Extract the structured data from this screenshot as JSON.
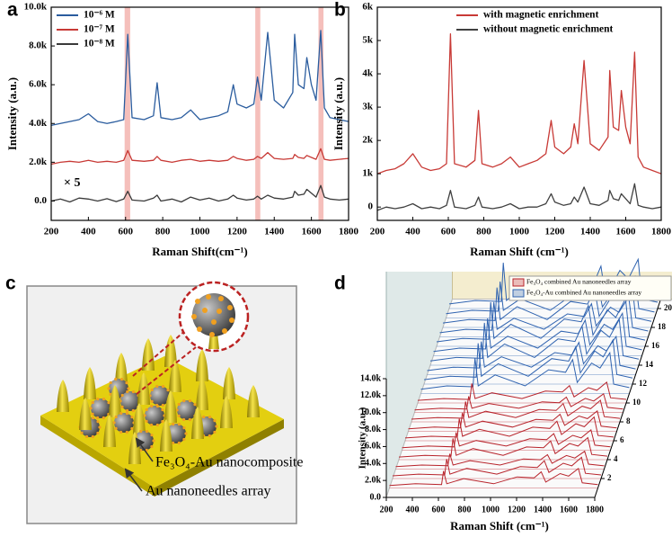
{
  "chart_data": [
    {
      "type": "line",
      "panel_label": "a",
      "x_label": "Raman Shift(cm⁻¹)",
      "y_label": "Intensity (a.u.)",
      "annotations": [
        "× 5"
      ],
      "legend": "upper left",
      "xlim": [
        200,
        1800
      ],
      "xticks": [
        200,
        400,
        600,
        800,
        1000,
        1200,
        1400,
        1600,
        1800
      ],
      "ylim": [
        -1000,
        10000
      ],
      "yticks": [
        {
          "value": 0,
          "label": "0.0"
        },
        {
          "value": 2000,
          "label": "2.0k"
        },
        {
          "value": 4000,
          "label": "4.0k"
        },
        {
          "value": 6000,
          "label": "6.0k"
        },
        {
          "value": 8000,
          "label": "8.0k"
        },
        {
          "value": 10000,
          "label": "10.0k"
        }
      ],
      "highlights": [
        [
          595,
          625
        ],
        [
          1298,
          1325
        ],
        [
          1638,
          1665
        ]
      ],
      "highlight_color": "#f2aaa4",
      "x": [
        200,
        250,
        300,
        350,
        400,
        450,
        500,
        550,
        590,
        612,
        635,
        700,
        750,
        770,
        790,
        850,
        900,
        950,
        1000,
        1050,
        1100,
        1150,
        1180,
        1200,
        1250,
        1290,
        1310,
        1330,
        1365,
        1400,
        1450,
        1500,
        1510,
        1530,
        1560,
        1575,
        1600,
        1625,
        1650,
        1670,
        1700,
        1750,
        1800
      ],
      "series": [
        {
          "name": "10⁻⁶ M",
          "color": "#2a5c9e",
          "values": [
            3900,
            4000,
            4100,
            4200,
            4500,
            4100,
            4000,
            4100,
            4200,
            8600,
            4300,
            4200,
            4400,
            6100,
            4300,
            4200,
            4300,
            4700,
            4200,
            4300,
            4400,
            4600,
            6000,
            5000,
            4800,
            5000,
            6400,
            5200,
            8700,
            5200,
            4800,
            5600,
            8600,
            6000,
            5800,
            7400,
            6000,
            5200,
            8800,
            4800,
            4300,
            4200,
            4100
          ]
        },
        {
          "name": "10⁻⁷ M",
          "color": "#c83a36",
          "values": [
            1900,
            2000,
            2050,
            2000,
            2100,
            2000,
            2050,
            2000,
            2100,
            2600,
            2100,
            2050,
            2100,
            2300,
            2100,
            2000,
            2100,
            2150,
            2050,
            2100,
            2050,
            2100,
            2300,
            2200,
            2100,
            2150,
            2300,
            2200,
            2500,
            2200,
            2150,
            2200,
            2400,
            2250,
            2200,
            2350,
            2250,
            2150,
            2700,
            2150,
            2100,
            2150,
            2200
          ]
        },
        {
          "name": "10⁻⁸ M",
          "color": "#3a3a3a",
          "values": [
            0,
            100,
            -50,
            150,
            100,
            0,
            120,
            -30,
            100,
            500,
            50,
            0,
            150,
            300,
            0,
            100,
            -50,
            200,
            50,
            150,
            0,
            100,
            300,
            150,
            50,
            100,
            250,
            100,
            300,
            150,
            100,
            200,
            500,
            300,
            350,
            600,
            400,
            200,
            800,
            200,
            100,
            50,
            100
          ]
        }
      ]
    },
    {
      "type": "line",
      "panel_label": "b",
      "x_label": "Raman Shift (cm⁻¹)",
      "y_label": "Intensity (a.u.)",
      "legend": "upper right",
      "xlim": [
        200,
        1800
      ],
      "xticks": [
        200,
        400,
        600,
        800,
        1000,
        1200,
        1400,
        1600,
        1800
      ],
      "ylim": [
        -400,
        6000
      ],
      "yticks": [
        0,
        {
          "value": 1000,
          "label": "1k"
        },
        {
          "value": 2000,
          "label": "2k"
        },
        {
          "value": 3000,
          "label": "3k"
        },
        {
          "value": 4000,
          "label": "4k"
        },
        {
          "value": 5000,
          "label": "5k"
        },
        {
          "value": 6000,
          "label": "6k"
        }
      ],
      "x": [
        200,
        250,
        300,
        350,
        400,
        450,
        500,
        550,
        590,
        612,
        635,
        700,
        750,
        770,
        790,
        850,
        900,
        950,
        1000,
        1050,
        1100,
        1150,
        1180,
        1200,
        1250,
        1290,
        1310,
        1330,
        1365,
        1400,
        1450,
        1500,
        1510,
        1530,
        1560,
        1575,
        1600,
        1625,
        1650,
        1670,
        1700,
        1750,
        1800
      ],
      "series": [
        {
          "name": "with magnetic enrichment",
          "color": "#c83a36",
          "values": [
            1000,
            1100,
            1150,
            1300,
            1600,
            1200,
            1100,
            1150,
            1300,
            5200,
            1300,
            1200,
            1400,
            2900,
            1300,
            1200,
            1300,
            1500,
            1200,
            1300,
            1400,
            1600,
            2600,
            1800,
            1600,
            1800,
            2500,
            1900,
            4400,
            1900,
            1700,
            2100,
            4100,
            2400,
            2300,
            3500,
            2400,
            1900,
            4650,
            1500,
            1200,
            1100,
            1000
          ]
        },
        {
          "name": "without magnetic enrichment",
          "color": "#404040",
          "values": [
            -100,
            0,
            -50,
            0,
            100,
            -50,
            0,
            -50,
            50,
            500,
            0,
            -50,
            50,
            300,
            0,
            -50,
            0,
            100,
            -50,
            0,
            0,
            100,
            400,
            150,
            50,
            100,
            300,
            150,
            600,
            100,
            50,
            200,
            500,
            250,
            200,
            400,
            250,
            100,
            700,
            50,
            0,
            -50,
            0
          ]
        }
      ]
    },
    {
      "type": "waterfall",
      "panel_label": "d",
      "x_label": "Raman Shift (cm⁻¹)",
      "y_label": "Intensity (a.u.)",
      "xlim": [
        200,
        1800
      ],
      "xticks": [
        200,
        400,
        600,
        800,
        1000,
        1200,
        1400,
        1600,
        1800
      ],
      "ylim": [
        0,
        14000
      ],
      "yticks": [
        {
          "value": 0,
          "label": "0.0"
        },
        {
          "value": 2000,
          "label": "2.0k"
        },
        {
          "value": 4000,
          "label": "4.0k"
        },
        {
          "value": 6000,
          "label": "6.0k"
        },
        {
          "value": 8000,
          "label": "8.0k"
        },
        {
          "value": 10000,
          "label": "10.0k"
        },
        {
          "value": 12000,
          "label": "12.0k"
        },
        {
          "value": 14000,
          "label": "14.0k"
        }
      ],
      "zlim": [
        0,
        21
      ],
      "zticks": [
        2,
        4,
        6,
        8,
        10,
        12,
        14,
        16,
        18,
        20
      ],
      "x": [
        200,
        400,
        600,
        615,
        640,
        770,
        1000,
        1180,
        1310,
        1365,
        1400,
        1510,
        1575,
        1650,
        1680,
        1800
      ],
      "series": [
        {
          "name": "Fe₃O₄ combined Au nanoneedles array",
          "color": "#b8232b",
          "z": [
            1,
            2,
            3,
            4,
            5,
            6,
            7,
            8,
            9,
            10
          ],
          "values": [
            [
              300,
              500,
              400,
              2000,
              500,
              1100,
              500,
              1300,
              1200,
              1900,
              700,
              1700,
              1400,
              2300,
              600,
              400
            ],
            [
              320,
              520,
              420,
              2300,
              520,
              1200,
              520,
              1400,
              1300,
              2100,
              720,
              1800,
              1500,
              2500,
              620,
              420
            ],
            [
              300,
              480,
              400,
              1800,
              480,
              1000,
              480,
              1200,
              1100,
              1700,
              680,
              1600,
              1300,
              2100,
              580,
              380
            ],
            [
              310,
              510,
              410,
              2500,
              510,
              1300,
              510,
              1500,
              1400,
              2200,
              710,
              1900,
              1600,
              2600,
              610,
              410
            ],
            [
              290,
              490,
              390,
              2100,
              490,
              1150,
              490,
              1350,
              1250,
              1950,
              690,
              1750,
              1450,
              2400,
              590,
              390
            ],
            [
              330,
              530,
              430,
              2600,
              530,
              1350,
              530,
              1600,
              1450,
              2300,
              730,
              2000,
              1650,
              2800,
              630,
              430
            ],
            [
              300,
              500,
              400,
              2200,
              500,
              1200,
              500,
              1400,
              1300,
              2000,
              700,
              1800,
              1500,
              2400,
              600,
              400
            ],
            [
              320,
              510,
              420,
              2400,
              510,
              1250,
              510,
              1450,
              1350,
              2150,
              710,
              1850,
              1550,
              2550,
              610,
              410
            ],
            [
              300,
              490,
              400,
              1900,
              490,
              1050,
              490,
              1250,
              1150,
              1800,
              690,
              1650,
              1350,
              2200,
              590,
              390
            ],
            [
              310,
              520,
              410,
              2300,
              520,
              1200,
              520,
              1400,
              1300,
              2050,
              720,
              1800,
              1500,
              2450,
              620,
              420
            ]
          ]
        },
        {
          "name": "Fe₃O₄-Au combined Au nanoneedles array",
          "color": "#2f63b0",
          "z": [
            11,
            12,
            13,
            14,
            15,
            16,
            17,
            18,
            19,
            20
          ],
          "values": [
            [
              500,
              900,
              800,
              4200,
              900,
              2200,
              900,
              2800,
              2500,
              4000,
              1300,
              3600,
              3000,
              4800,
              1100,
              700
            ],
            [
              520,
              920,
              820,
              4800,
              920,
              2400,
              920,
              3000,
              2700,
              4400,
              1320,
              3900,
              3200,
              5200,
              1120,
              720
            ],
            [
              480,
              880,
              780,
              3900,
              880,
              2100,
              880,
              2600,
              2300,
              3800,
              1280,
              3400,
              2800,
              4500,
              1080,
              680
            ],
            [
              510,
              910,
              810,
              5000,
              910,
              2500,
              910,
              3100,
              2800,
              4600,
              1310,
              4100,
              3300,
              5400,
              1110,
              710
            ],
            [
              500,
              900,
              800,
              4400,
              900,
              2300,
              900,
              2900,
              2600,
              4200,
              1300,
              3700,
              3100,
              5000,
              1100,
              700
            ],
            [
              530,
              930,
              830,
              5200,
              930,
              2600,
              930,
              3200,
              2900,
              4800,
              1330,
              4300,
              3400,
              5600,
              1130,
              730
            ],
            [
              490,
              890,
              790,
              4100,
              890,
              2200,
              890,
              2700,
              2400,
              3900,
              1290,
              3500,
              2900,
              4700,
              1090,
              690
            ],
            [
              520,
              920,
              820,
              4700,
              920,
              2450,
              920,
              3050,
              2750,
              4500,
              1320,
              4000,
              3250,
              5300,
              1120,
              720
            ],
            [
              500,
              900,
              800,
              4300,
              900,
              2250,
              900,
              2850,
              2550,
              4100,
              1300,
              3650,
              3050,
              4900,
              1100,
              700
            ],
            [
              540,
              940,
              840,
              5400,
              940,
              2700,
              940,
              3300,
              3000,
              5000,
              1340,
              4500,
              3500,
              5800,
              1140,
              740
            ]
          ]
        }
      ]
    }
  ],
  "illustration": {
    "panel_label": "c",
    "annotations": [
      "Fe₃O₄-Au nanocomposite",
      "Au nanoneedles array"
    ]
  }
}
